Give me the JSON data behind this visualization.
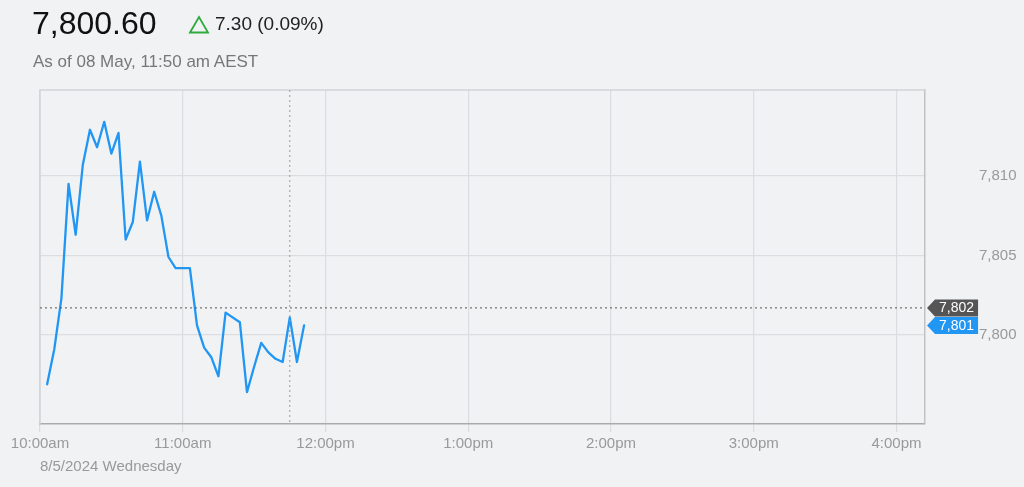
{
  "chart_data": {
    "type": "line",
    "title": "7,800.60",
    "subtitle": "As of 08 May, 11:50 am AEST",
    "xlabel": "8/5/2024 Wednesday",
    "annotations": [
      "7.30 (0.09%)",
      "7,801"
    ],
    "x": [
      10.05,
      10.1,
      10.15,
      10.2,
      10.25,
      10.3,
      10.35,
      10.4,
      10.45,
      10.5,
      10.55,
      10.6,
      10.65,
      10.7,
      10.75,
      10.8,
      10.85,
      10.9,
      10.95,
      11.05,
      11.1,
      11.15,
      11.2,
      11.25,
      11.3,
      11.4,
      11.45,
      11.5,
      11.55,
      11.6,
      11.65,
      11.7,
      11.75,
      11.8,
      11.85
    ],
    "series": [
      {
        "color": "#2196f3",
        "values": [
          7796.9,
          7799.1,
          7802.3,
          7809.5,
          7806.3,
          7810.7,
          7812.9,
          7811.8,
          7813.4,
          7811.4,
          7812.7,
          7806.0,
          7807.1,
          7810.9,
          7807.2,
          7809.0,
          7807.5,
          7804.9,
          7804.2,
          7804.2,
          7800.6,
          7799.2,
          7798.6,
          7797.4,
          7801.4,
          7800.8,
          7796.4,
          7798.0,
          7799.5,
          7798.9,
          7798.5,
          7798.3,
          7801.1,
          7798.3,
          7800.6
        ]
      }
    ],
    "xlim": [
      10,
      16.2
    ],
    "xticks": [
      {
        "value": 10,
        "label": "10:00am"
      },
      {
        "value": 11,
        "label": "11:00am"
      },
      {
        "value": 12,
        "label": "12:00pm"
      },
      {
        "value": 13,
        "label": "1:00pm"
      },
      {
        "value": 14,
        "label": "2:00pm"
      },
      {
        "value": 15,
        "label": "3:00pm"
      },
      {
        "value": 16,
        "label": "4:00pm"
      }
    ],
    "ylim": [
      7794.4,
      7815.4
    ],
    "yticks": [
      {
        "value": 7800,
        "label": "7,800"
      },
      {
        "value": 7805,
        "label": "7,805"
      },
      {
        "value": 7810,
        "label": "7,810"
      }
    ],
    "ref_lines": [
      {
        "axis": "x",
        "value": 11.75,
        "color": "#999999",
        "line_style": "dotted"
      },
      {
        "axis": "y",
        "value": 7801.7,
        "label": "7,802",
        "color": "#555555",
        "line_style": "dotted"
      }
    ],
    "grid": true
  }
}
